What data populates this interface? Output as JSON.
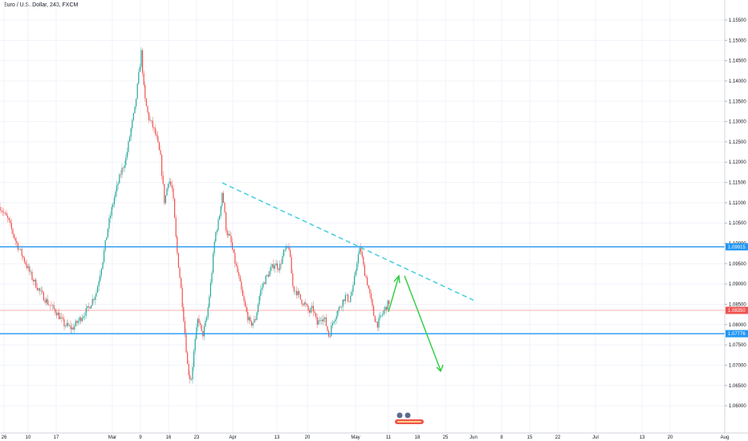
{
  "header": {
    "title": "Euro / U.S. Dollar, 240, FXCM"
  },
  "chart_data": {
    "type": "candlestick",
    "title": "Euro / U.S. Dollar, 240, FXCM",
    "grid": true,
    "ylim": [
      1.0575,
      1.159
    ],
    "y_ticks": [
      "1.15500",
      "1.15000",
      "1.14500",
      "1.14000",
      "1.13500",
      "1.13000",
      "1.12500",
      "1.12000",
      "1.11500",
      "1.11000",
      "1.10500",
      "1.10000",
      "1.09500",
      "1.09000",
      "1.08500",
      "1.08000",
      "1.07500",
      "1.07000",
      "1.06500",
      "1.06000"
    ],
    "x_ticks": [
      "26",
      "10",
      "17",
      "Mar",
      "9",
      "16",
      "23",
      "Apr",
      "13",
      "20",
      "May",
      "11",
      "18",
      "25",
      "Jun",
      "8",
      "15",
      "22",
      "Jul",
      "13",
      "20",
      "Aug"
    ],
    "horizontal_levels": [
      {
        "price": 1.09915,
        "label": "1.09915",
        "color": "#2196f3"
      },
      {
        "price": 1.07776,
        "label": "1.07776",
        "color": "#2196f3"
      }
    ],
    "current_price": {
      "price": 1.0835,
      "label": "1.08350",
      "color": "#ef5350"
    },
    "trendline": {
      "from": [
        1.1149,
        0
      ],
      "to": [
        1.086,
        1
      ],
      "color": "#4dd0e1",
      "style": "dashed"
    },
    "projection_arrows": {
      "color": "#2ecc40"
    },
    "colors": {
      "up": "#26a69a",
      "down": "#ef5350"
    }
  }
}
